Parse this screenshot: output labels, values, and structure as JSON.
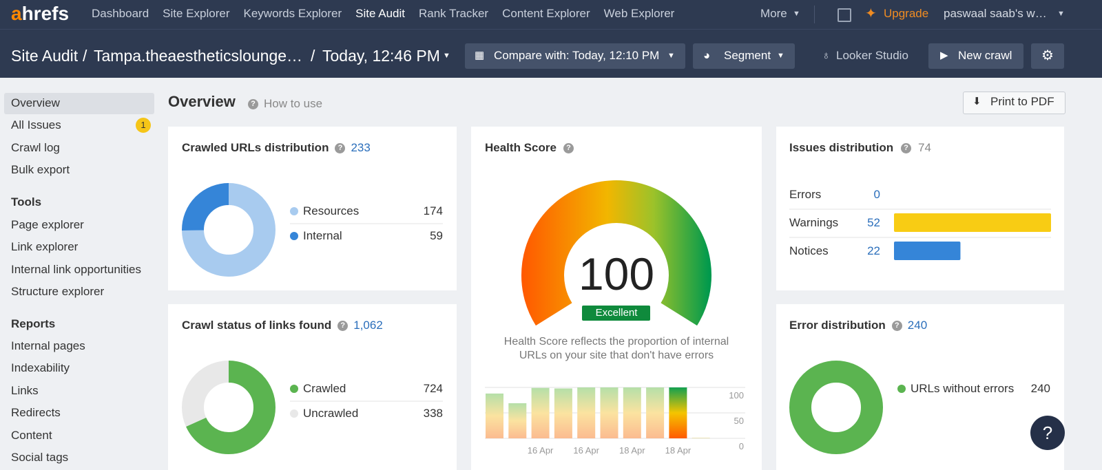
{
  "nav": {
    "logo_accent": "a",
    "logo_rest": "hrefs",
    "items": [
      "Dashboard",
      "Site Explorer",
      "Keywords Explorer",
      "Site Audit",
      "Rank Tracker",
      "Content Explorer",
      "Web Explorer"
    ],
    "more": "More",
    "upgrade": "Upgrade",
    "account": "paswaal saab's w…"
  },
  "subheader": {
    "section": "Site Audit",
    "separator": "/",
    "project": "Tampa.theaestheticslounge…",
    "date": "Today, 12:46 PM",
    "compare": "Compare with: Today, 12:10 PM",
    "segment": "Segment",
    "looker": "Looker Studio",
    "new_crawl": "New crawl"
  },
  "sidebar": {
    "main": [
      "Overview",
      "All Issues",
      "Crawl log",
      "Bulk export"
    ],
    "all_issues_badge": 1,
    "tools_heading": "Tools",
    "tools": [
      "Page explorer",
      "Link explorer",
      "Internal link opportunities",
      "Structure explorer"
    ],
    "reports_heading": "Reports",
    "reports": [
      "Internal pages",
      "Indexability",
      "Links",
      "Redirects",
      "Content",
      "Social tags"
    ]
  },
  "page": {
    "title": "Overview",
    "help": "How to use",
    "print": "Print to PDF"
  },
  "crawled_urls": {
    "title": "Crawled URLs distribution",
    "total": 233,
    "segments": [
      {
        "label": "Resources",
        "value": 174,
        "color": "#a8cbef"
      },
      {
        "label": "Internal",
        "value": 59,
        "color": "#3585d8"
      }
    ]
  },
  "crawl_status": {
    "title": "Crawl status of links found",
    "total": "1,062",
    "segments": [
      {
        "label": "Crawled",
        "value": 724,
        "color": "#5bb450"
      },
      {
        "label": "Uncrawled",
        "value": 338,
        "color": "#e8e8e8"
      }
    ]
  },
  "health_score": {
    "title": "Health Score",
    "score": 100,
    "range": [
      0,
      100
    ],
    "rating": "Excellent",
    "description": "Health Score reflects the proportion of internal URLs on your site that don't have errors",
    "history": {
      "categories": [
        null,
        null,
        "16 Apr",
        null,
        "16 Apr",
        null,
        "18 Apr",
        null,
        "18 Apr",
        null
      ],
      "values": [
        88,
        69,
        99,
        98,
        100,
        100,
        100,
        100,
        100,
        1
      ],
      "ylim": [
        0,
        100
      ],
      "yticks": [
        0,
        50,
        100
      ]
    }
  },
  "issues": {
    "title": "Issues distribution",
    "total": 74,
    "rows": [
      {
        "label": "Errors",
        "value": 0
      },
      {
        "label": "Warnings",
        "value": 52,
        "color": "#f8cc14"
      },
      {
        "label": "Notices",
        "value": 22,
        "color": "#3585d8"
      }
    ]
  },
  "error_distribution": {
    "title": "Error distribution",
    "total": 240,
    "segments": [
      {
        "label": "URLs without errors",
        "value": 240,
        "color": "#5bb450"
      }
    ]
  }
}
